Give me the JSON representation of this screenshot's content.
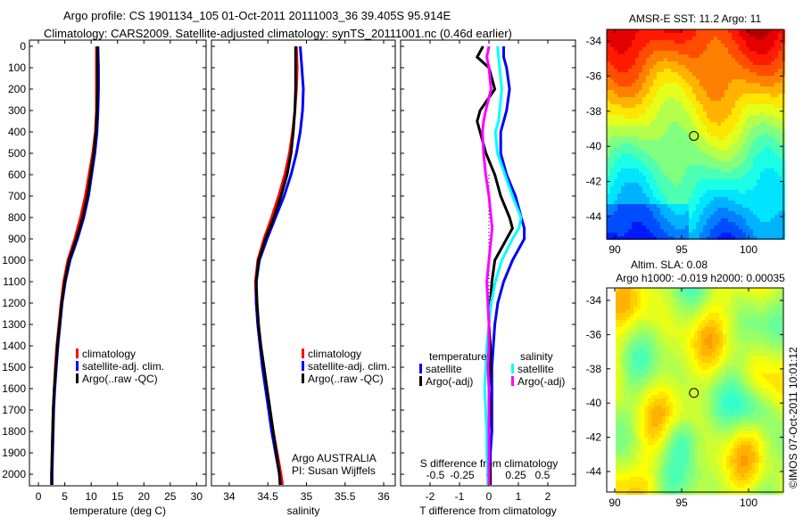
{
  "title": {
    "line1": "Argo profile: CS 1901134_105 01-Oct-2011 20111003_36 39.405S 95.914E",
    "line2": "Climatology: CARS2009. Satellite-adjusted climatology: synTS_20111001.nc (0.46d earlier)"
  },
  "credit": "©IMOS 07-Oct-2011 10:01:12",
  "chart_data": [
    {
      "type": "line",
      "id": "temperature-profile",
      "xlabel": "temperature (deg C)",
      "ylabel": "depth",
      "xlim": [
        -1.7,
        31.8
      ],
      "ylim": [
        2054,
        -29
      ],
      "xticks": [
        0,
        5,
        10,
        15,
        20,
        25,
        30
      ],
      "yticks": [
        0,
        100,
        200,
        300,
        400,
        500,
        600,
        700,
        800,
        900,
        1000,
        1100,
        1200,
        1300,
        1400,
        1500,
        1600,
        1700,
        1800,
        1900,
        2000
      ],
      "depth": [
        0,
        100,
        200,
        300,
        400,
        500,
        600,
        700,
        800,
        900,
        1000,
        1100,
        1200,
        1300,
        1400,
        1500,
        1600,
        1700,
        1800,
        1900,
        2000,
        2050
      ],
      "series": [
        {
          "name": "climatology",
          "color": "#ff0000",
          "values": [
            11,
            11,
            11,
            11,
            10.8,
            10.3,
            9.6,
            8.9,
            8.0,
            6.9,
            5.6,
            4.8,
            4.3,
            3.9,
            3.5,
            3.2,
            3.0,
            2.8,
            2.7,
            2.6,
            2.5,
            2.5
          ]
        },
        {
          "name": "satellite-adj. clim.",
          "color": "#0000ff",
          "values": [
            11.3,
            11.4,
            11.4,
            11.3,
            11.1,
            10.7,
            10.1,
            9.5,
            8.6,
            7.4,
            6.0,
            5.1,
            4.5,
            4.1,
            3.7,
            3.4,
            3.1,
            2.9,
            2.8,
            2.7,
            2.6,
            2.6
          ]
        },
        {
          "name": "Argo(..raw -QC)",
          "color": "#000000",
          "values": [
            11.2,
            11.2,
            11.2,
            11.1,
            10.9,
            10.5,
            9.9,
            9.3,
            8.4,
            7.2,
            5.8,
            5.0,
            4.4,
            4.0,
            3.6,
            3.3,
            3.0,
            2.8,
            2.7,
            2.6,
            2.5,
            2.5
          ]
        }
      ]
    },
    {
      "type": "line",
      "id": "salinity-profile",
      "xlabel": "salinity",
      "xlim": [
        33.77,
        36.15
      ],
      "ylim": [
        2054,
        -29
      ],
      "xticks": [
        34,
        34.5,
        35,
        35.5,
        36
      ],
      "depth": [
        0,
        100,
        200,
        300,
        400,
        500,
        600,
        700,
        800,
        900,
        1000,
        1100,
        1200,
        1300,
        1400,
        1500,
        1600,
        1700,
        1800,
        1900,
        2000,
        2050
      ],
      "series": [
        {
          "name": "climatology",
          "color": "#ff0000",
          "values": [
            34.87,
            34.88,
            34.87,
            34.85,
            34.82,
            34.78,
            34.72,
            34.64,
            34.55,
            34.45,
            34.37,
            34.34,
            34.35,
            34.37,
            34.4,
            34.44,
            34.48,
            34.52,
            34.57,
            34.62,
            34.67,
            34.69
          ]
        },
        {
          "name": "satellite-adj. clim.",
          "color": "#0000ff",
          "values": [
            34.92,
            34.94,
            34.96,
            34.95,
            34.92,
            34.87,
            34.8,
            34.71,
            34.6,
            34.49,
            34.39,
            34.35,
            34.35,
            34.37,
            34.4,
            34.43,
            34.47,
            34.51,
            34.55,
            34.6,
            34.65,
            34.66
          ]
        },
        {
          "name": "Argo(..raw -QC)",
          "color": "#000000",
          "values": [
            34.86,
            34.86,
            34.86,
            34.85,
            34.83,
            34.8,
            34.75,
            34.67,
            34.58,
            34.47,
            34.38,
            34.35,
            34.36,
            34.38,
            34.41,
            34.45,
            34.49,
            34.53,
            34.57,
            34.61,
            34.65,
            34.66
          ]
        }
      ],
      "annotation": [
        "Argo AUSTRALIA",
        "PI: Susan Wijffels"
      ]
    },
    {
      "type": "line",
      "id": "difference-profile",
      "xlabel": "T difference from climatology",
      "x2label": "S difference from climatology",
      "xlim": [
        -3.0,
        2.94
      ],
      "xticks": [
        -2,
        -1,
        0,
        1,
        2
      ],
      "x2ticks": [
        -0.5,
        -0.25,
        0,
        0.25,
        0.5
      ],
      "x2tick_labels": [
        "-0.5",
        "-0.25",
        "0",
        "0.25",
        "0.5"
      ],
      "ylim": [
        2054,
        -29
      ],
      "depth": [
        0,
        50,
        100,
        200,
        300,
        350,
        400,
        500,
        600,
        700,
        800,
        850,
        900,
        1000,
        1100,
        1200,
        1300,
        1400,
        1500,
        1600,
        1700,
        1800,
        1900,
        2000,
        2050
      ],
      "legend_titles": {
        "temperature": "temperature",
        "salinity": "salinity"
      },
      "series": [
        {
          "name": "satellite",
          "group": "temperature",
          "color": "#0000ff",
          "values": [
            0.5,
            0.5,
            0.6,
            0.7,
            0.6,
            0.5,
            0.4,
            0.4,
            0.6,
            0.9,
            1.1,
            1.2,
            1.2,
            0.8,
            0.5,
            0.3,
            0.2,
            0.15,
            0.1,
            0.1,
            0.1,
            0.1,
            0.05,
            0.05,
            0.05
          ]
        },
        {
          "name": "Argo(-adj)",
          "group": "temperature",
          "color": "#000000",
          "values": [
            -0.2,
            -0.4,
            0.0,
            0.2,
            -0.3,
            -0.4,
            -0.3,
            -0.1,
            0.2,
            0.4,
            0.7,
            0.8,
            0.6,
            0.2,
            0.1,
            0.05,
            0.0,
            0.05,
            0.05,
            0.0,
            0.05,
            0.0,
            0.0,
            0.05,
            0.05
          ]
        },
        {
          "name": "satellite",
          "group": "salinity",
          "color": "#00ffff",
          "values": [
            0.08,
            0.09,
            0.1,
            0.12,
            0.1,
            0.09,
            0.06,
            0.08,
            0.15,
            0.22,
            0.3,
            0.28,
            0.22,
            0.12,
            0.06,
            0.02,
            0.0,
            -0.02,
            -0.03,
            -0.04,
            -0.03,
            -0.02,
            -0.02,
            -0.01,
            -0.01
          ]
        },
        {
          "name": "Argo(-adj)",
          "group": "salinity",
          "color": "#ff00ff",
          "values": [
            0.0,
            -0.02,
            0.0,
            0.02,
            -0.03,
            -0.05,
            -0.06,
            -0.05,
            -0.03,
            0.0,
            0.02,
            0.03,
            0.02,
            0.0,
            -0.02,
            -0.01,
            0.0,
            0.0,
            -0.01,
            0.0,
            0.0,
            0.0,
            0.0,
            0.0,
            0.0
          ]
        }
      ]
    },
    {
      "type": "heatmap",
      "id": "sst-map",
      "title": "AMSR-E SST: 11.2 Argo: 11",
      "xlim": [
        89.4,
        102.6
      ],
      "ylim": [
        -45.27,
        -33.34
      ],
      "xticks": [
        90,
        95,
        100
      ],
      "yticks": [
        -34,
        -36,
        -38,
        -40,
        -42,
        -44
      ],
      "marker": {
        "lon": 95.914,
        "lat": -39.405
      }
    },
    {
      "type": "heatmap",
      "id": "sla-map",
      "title": "Altim. SLA: 0.08",
      "subtitle": "Argo h1000: -0.019 h2000: 0.00035",
      "xlim": [
        89.4,
        102.6
      ],
      "ylim": [
        -45.2,
        -33.27
      ],
      "xticks": [
        90,
        95,
        100
      ],
      "yticks": [
        -34,
        -36,
        -38,
        -40,
        -42,
        -44
      ],
      "marker": {
        "lon": 95.914,
        "lat": -39.405
      }
    }
  ]
}
